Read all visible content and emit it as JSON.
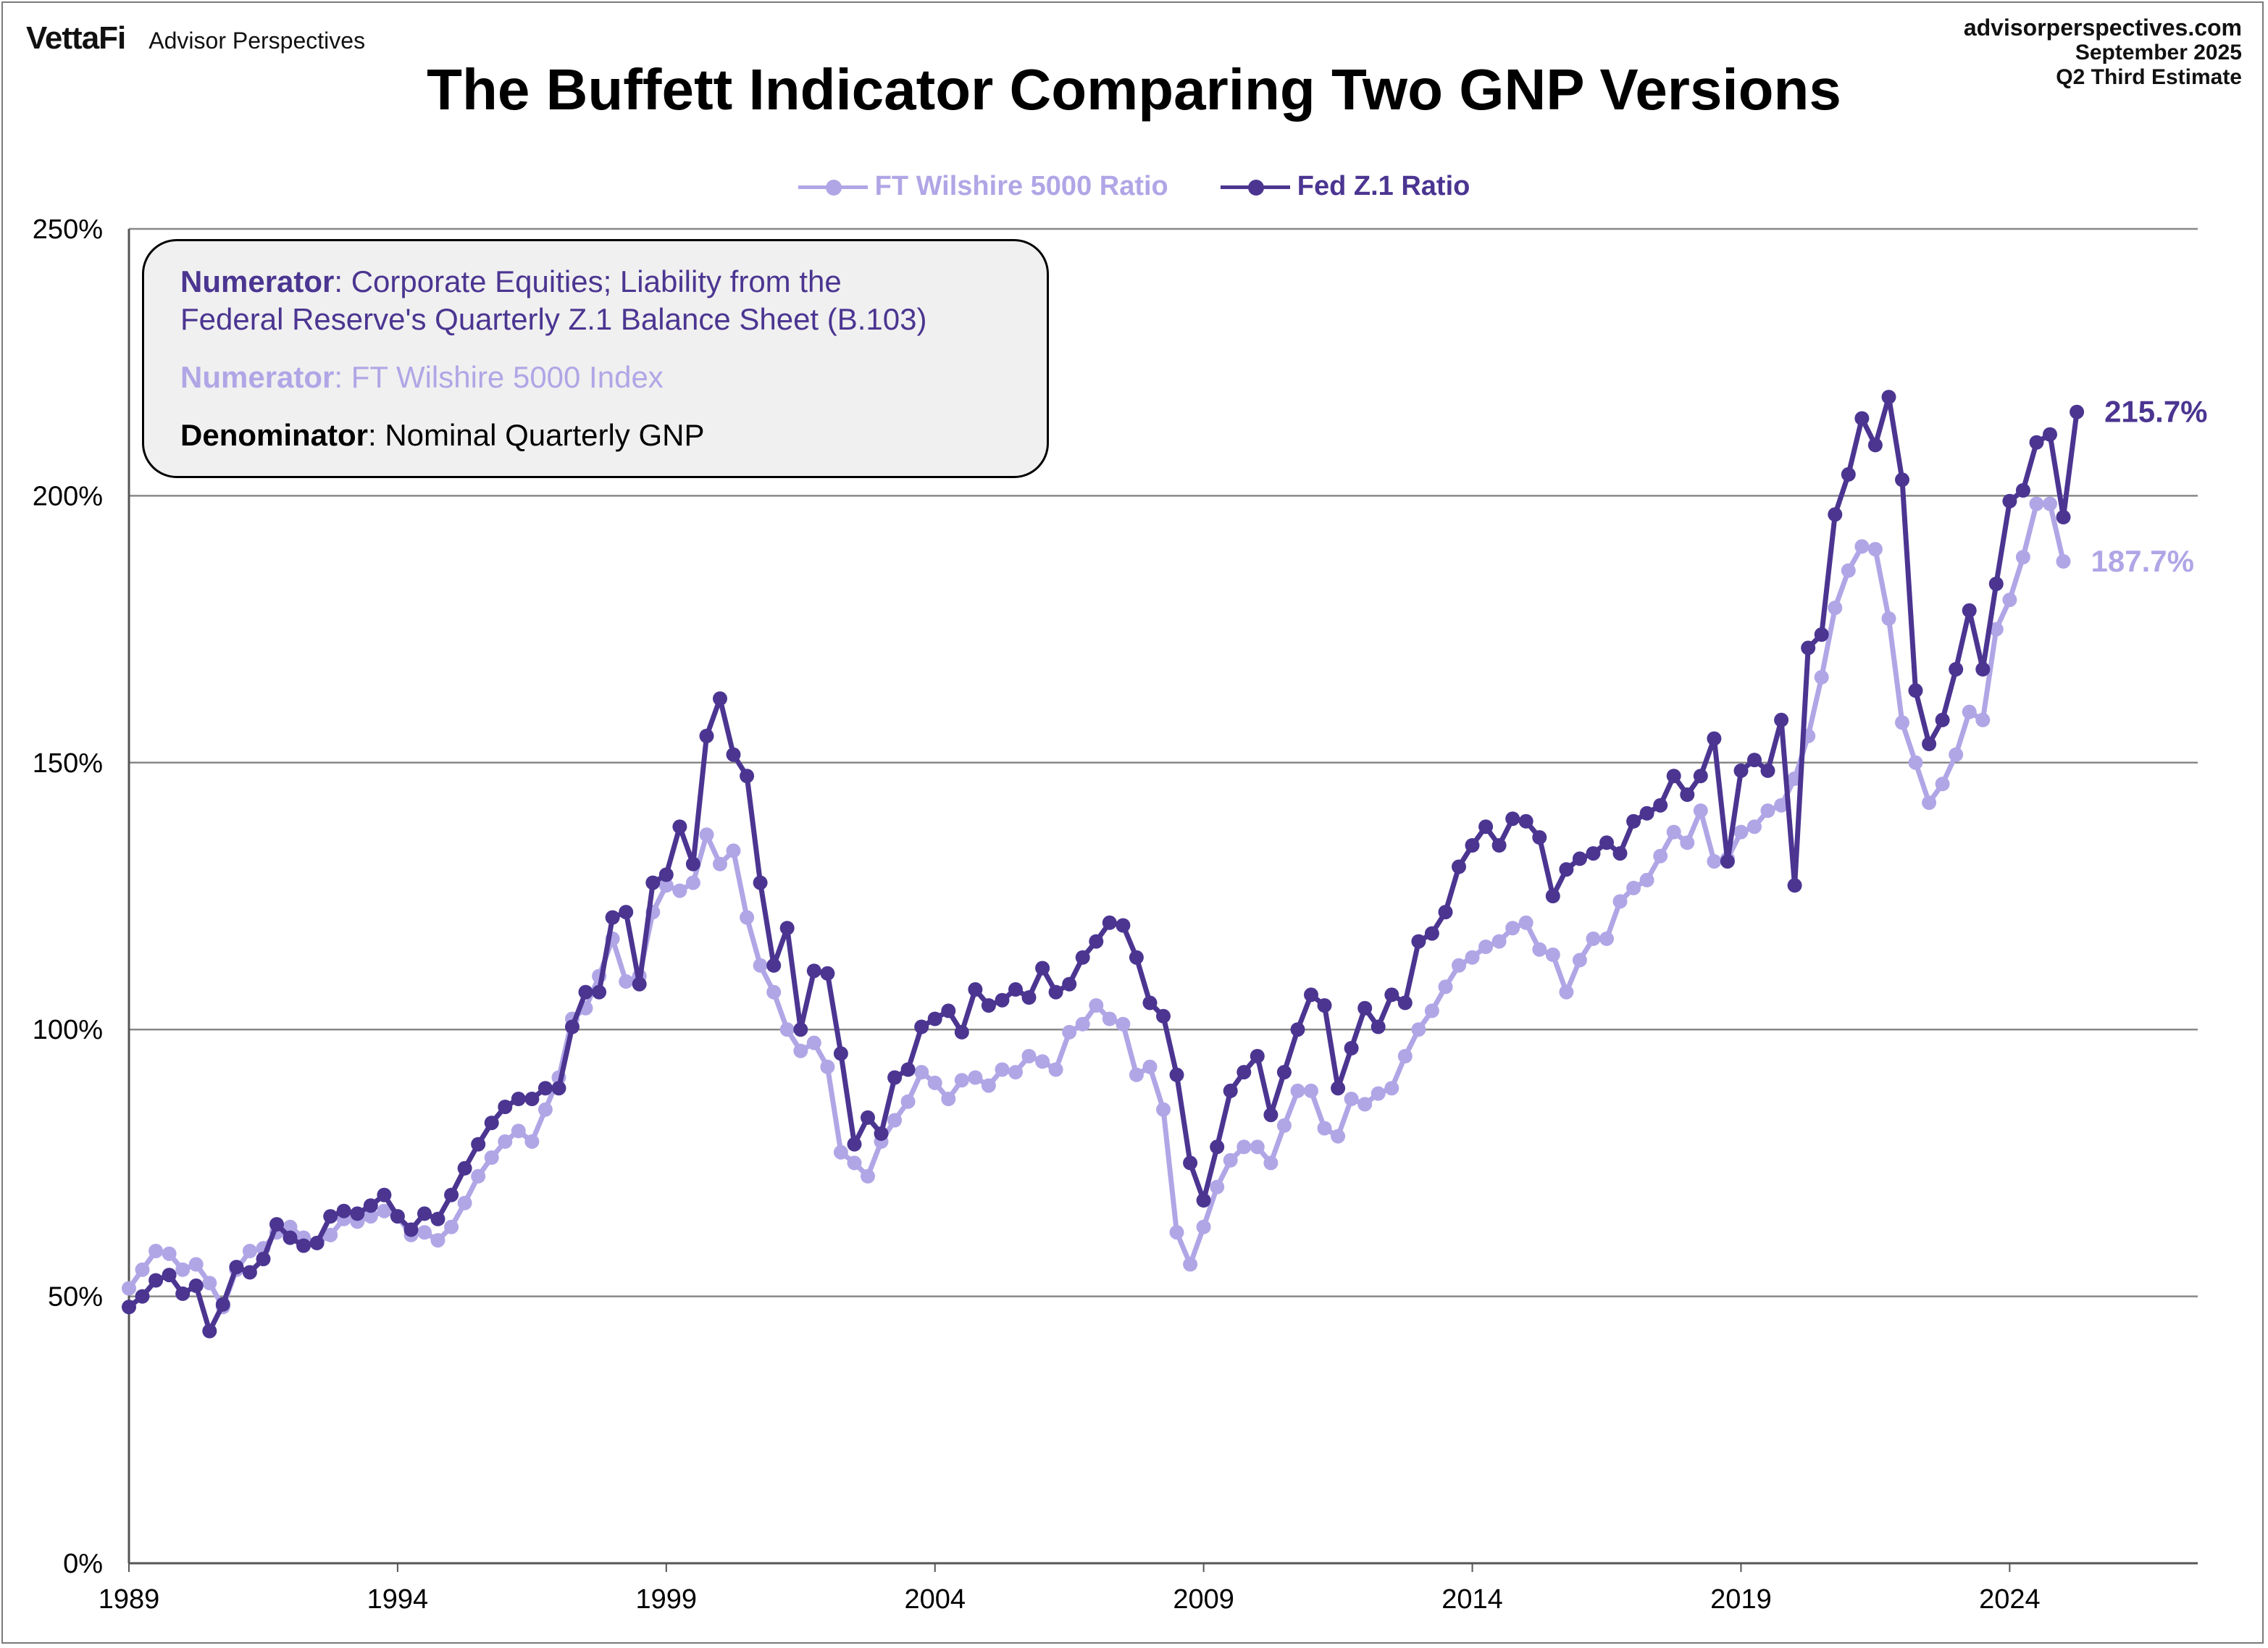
{
  "header": {
    "brand_logo": "VettaFi",
    "brand_sub": "Advisor Perspectives",
    "source_site": "advisorperspectives.com",
    "source_date": "September 2025",
    "source_note": "Q2 Third Estimate"
  },
  "infobox": {
    "line1_label": "Numerator",
    "line1_text": ": Corporate Equities; Liability from the",
    "line1b_text": "Federal Reserve's Quarterly Z.1 Balance Sheet (B.103)",
    "line2_label": "Numerator",
    "line2_text": ": FT Wilshire 5000 Index",
    "line3_label": "Denominator",
    "line3_text": ": Nominal Quarterly GNP"
  },
  "colors": {
    "fed": "#4b3591",
    "wilshire": "#b0a6e6",
    "grid": "#888888"
  },
  "chart_data": {
    "type": "line",
    "title": "The Buffett Indicator Comparing Two GNP Versions",
    "xlabel": "",
    "ylabel": "",
    "xlim": [
      1989.0,
      2027.5
    ],
    "ylim": [
      0,
      250
    ],
    "y_ticks": [
      0,
      50,
      100,
      150,
      200,
      250
    ],
    "y_tick_labels": [
      "0%",
      "50%",
      "100%",
      "150%",
      "200%",
      "250%"
    ],
    "x_ticks": [
      1989,
      1994,
      1999,
      2004,
      2009,
      2014,
      2019,
      2024
    ],
    "x_tick_labels": [
      "1989",
      "1994",
      "1999",
      "2004",
      "2009",
      "2014",
      "2019",
      "2024"
    ],
    "grid": "horizontal",
    "legend_position": "top-center",
    "x_start": 1989.0,
    "x_step": 0.25,
    "series": [
      {
        "name": "FT Wilshire 5000 Ratio",
        "end_label": "187.7%",
        "values": [
          51.5,
          55,
          58.5,
          58,
          55,
          56,
          52.5,
          48,
          55,
          58.5,
          59,
          62,
          63,
          61,
          60,
          61.5,
          64.5,
          64,
          65,
          66,
          65,
          61.5,
          62,
          60.5,
          63,
          67.5,
          72.5,
          76,
          79,
          81,
          79,
          85,
          91,
          102,
          104,
          110,
          117,
          109,
          110,
          122,
          127,
          126,
          127.5,
          136.5,
          131,
          133.5,
          121,
          112,
          107,
          100,
          96,
          97.5,
          93,
          77,
          75,
          72.5,
          79,
          83,
          86.5,
          92,
          90,
          87,
          90.5,
          91,
          89.5,
          92.5,
          92,
          95,
          94,
          92.5,
          99.5,
          101,
          104.5,
          102,
          101,
          91.5,
          93,
          85,
          62,
          56,
          63,
          70.5,
          75.5,
          78,
          78,
          75,
          82,
          88.5,
          88.5,
          81.5,
          80,
          87,
          86,
          88,
          89,
          95,
          100,
          103.5,
          108,
          112,
          113.5,
          115.5,
          116.5,
          119,
          120,
          115,
          114,
          107,
          113,
          117,
          117,
          124,
          126.5,
          128,
          132.5,
          137,
          135,
          141,
          131.5,
          132,
          137,
          138,
          141,
          142,
          147,
          155,
          166,
          179,
          186,
          190.5,
          190,
          177,
          157.5,
          150,
          142.5,
          146,
          151.5,
          159.5,
          158,
          175,
          180.5,
          188.5,
          198.5,
          198.5,
          187.7
        ]
      },
      {
        "name": "Fed Z.1 Ratio",
        "end_label": "215.7%",
        "values": [
          48,
          50,
          53,
          54,
          50.5,
          52,
          43.5,
          48.5,
          55.5,
          54.5,
          57,
          63.5,
          61,
          59.5,
          60,
          65,
          66,
          65.5,
          67,
          69,
          65,
          62.5,
          65.5,
          64.5,
          69,
          74,
          78.5,
          82.5,
          85.5,
          87,
          87,
          89,
          89,
          100.5,
          107,
          107,
          121,
          122,
          108.5,
          127.5,
          129,
          138,
          131,
          155,
          162,
          151.5,
          147.5,
          127.5,
          112,
          119,
          100,
          111,
          110.5,
          95.5,
          78.5,
          83.5,
          80.5,
          91,
          92.5,
          100.5,
          102,
          103.5,
          99.5,
          107.5,
          104.5,
          105.5,
          107.5,
          106,
          111.5,
          107,
          108.5,
          113.5,
          116.5,
          120,
          119.5,
          113.5,
          105,
          102.5,
          91.5,
          75,
          68,
          78,
          88.5,
          92,
          95,
          84,
          92,
          100,
          106.5,
          104.5,
          89,
          96.5,
          104,
          100.5,
          106.5,
          105,
          116.5,
          118,
          122,
          130.5,
          134.5,
          138,
          134.5,
          139.5,
          139,
          136,
          125,
          130,
          132,
          133,
          135,
          133,
          139,
          140.5,
          142,
          147.5,
          144,
          147.5,
          154.5,
          131.5,
          148.5,
          150.5,
          148.5,
          158,
          127,
          171.5,
          174,
          196.5,
          204,
          214.5,
          209.5,
          218.5,
          203,
          163.5,
          153.5,
          158,
          167.5,
          178.5,
          167.5,
          183.5,
          199,
          201,
          210,
          211.5,
          196,
          215.7
        ]
      }
    ]
  }
}
